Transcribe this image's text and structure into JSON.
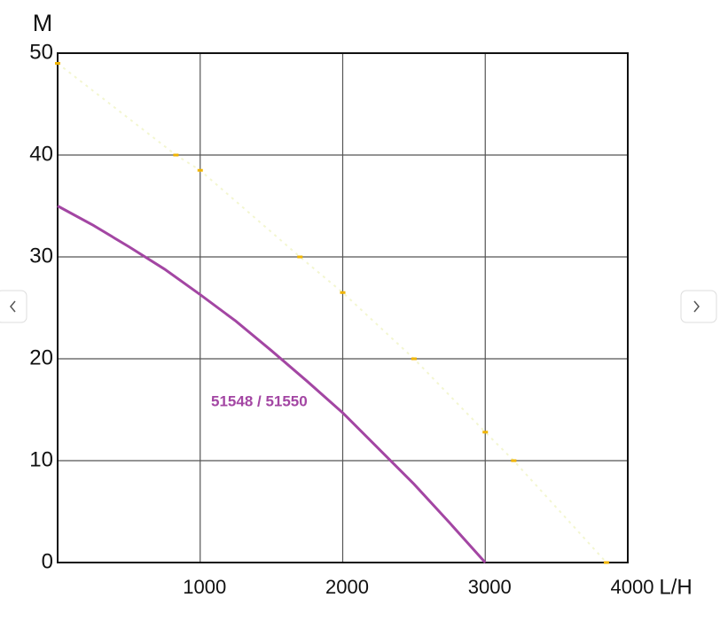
{
  "chart_data": {
    "type": "line",
    "y_label": "M",
    "x_label": "L/H",
    "annotation": "51548 / 51550",
    "xlim": [
      0,
      4000
    ],
    "xticks": [
      1000,
      2000,
      3000,
      4000
    ],
    "ylim": [
      0,
      50
    ],
    "yticks": [
      0,
      10,
      20,
      30,
      40,
      50
    ],
    "grid": true,
    "series": [
      {
        "color": "#a346a3",
        "style": "solid",
        "x": [
          0,
          250,
          500,
          750,
          1000,
          1250,
          1500,
          1750,
          2000,
          2250,
          2500,
          2750,
          3000
        ],
        "values": [
          35,
          33.1,
          31.0,
          28.8,
          26.3,
          23.7,
          20.8,
          17.8,
          14.7,
          11.2,
          7.7,
          3.9,
          0
        ]
      },
      {
        "color": "#f0b400",
        "style": "faint",
        "x": [
          0,
          830,
          1000,
          1700,
          2000,
          2500,
          3000,
          3200,
          3850
        ],
        "values": [
          49,
          40,
          38.5,
          30,
          26.5,
          20,
          12.8,
          10,
          0
        ]
      }
    ]
  }
}
